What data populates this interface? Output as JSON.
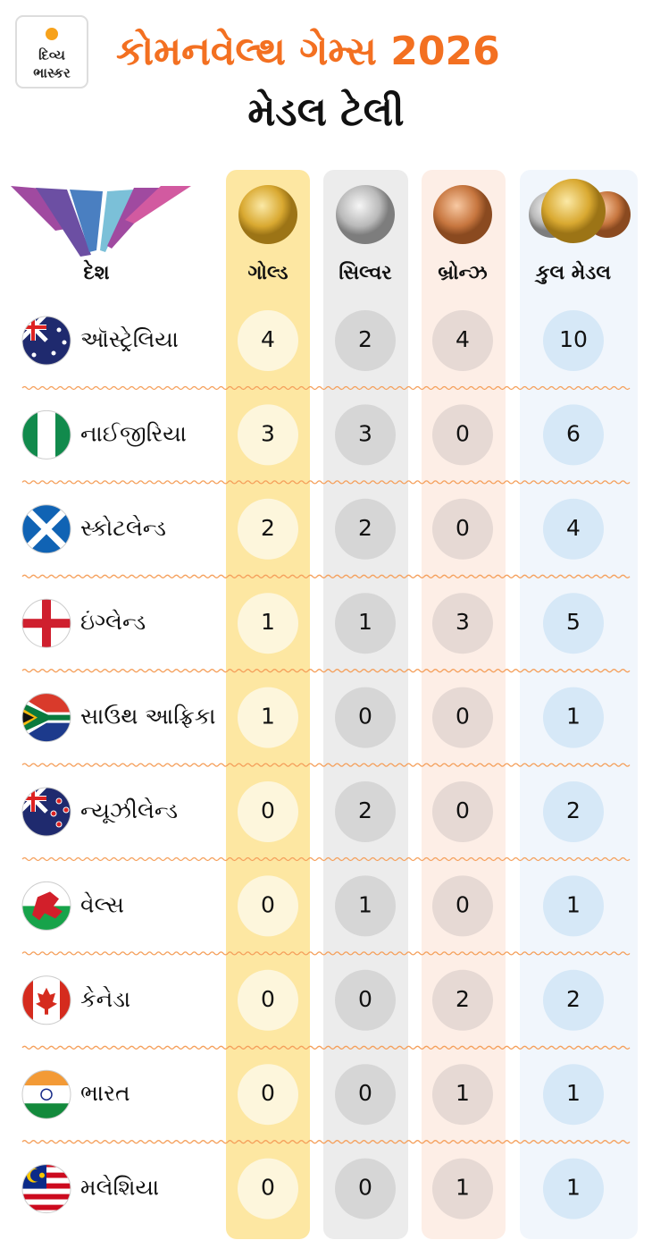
{
  "header": {
    "brand": [
      "દિવ્ય",
      "ભાસ્કર"
    ],
    "title": "કોમનવેલ્થ ગેમ્સ 2026",
    "subtitle": "મેડલ ટેલી"
  },
  "table": {
    "columns": [
      "દેશ",
      "ગોલ્ડ",
      "સિલ્વર",
      "બ્રોન્ઝ",
      "કુલ મેડલ"
    ],
    "rows": [
      [
        "ઑસ્ટ્રેલિયા",
        "4",
        "2",
        "4",
        "10"
      ],
      [
        "નાઈજીરિયા",
        "3",
        "3",
        "0",
        "6"
      ],
      [
        "સ્કોટલેન્ડ",
        "2",
        "2",
        "0",
        "4"
      ],
      [
        "ઇંગ્લેન્ડ",
        "1",
        "1",
        "3",
        "5"
      ],
      [
        "સાઉથ આફ્રિકા",
        "1",
        "0",
        "0",
        "1"
      ],
      [
        "ન્યૂઝીલેન્ડ",
        "0",
        "2",
        "0",
        "2"
      ],
      [
        "વેલ્સ",
        "0",
        "1",
        "0",
        "1"
      ],
      [
        "કેનેડા",
        "0",
        "0",
        "2",
        "2"
      ],
      [
        "ભારત",
        "0",
        "0",
        "1",
        "1"
      ],
      [
        "મલેશિયા",
        "0",
        "0",
        "1",
        "1"
      ]
    ]
  }
}
